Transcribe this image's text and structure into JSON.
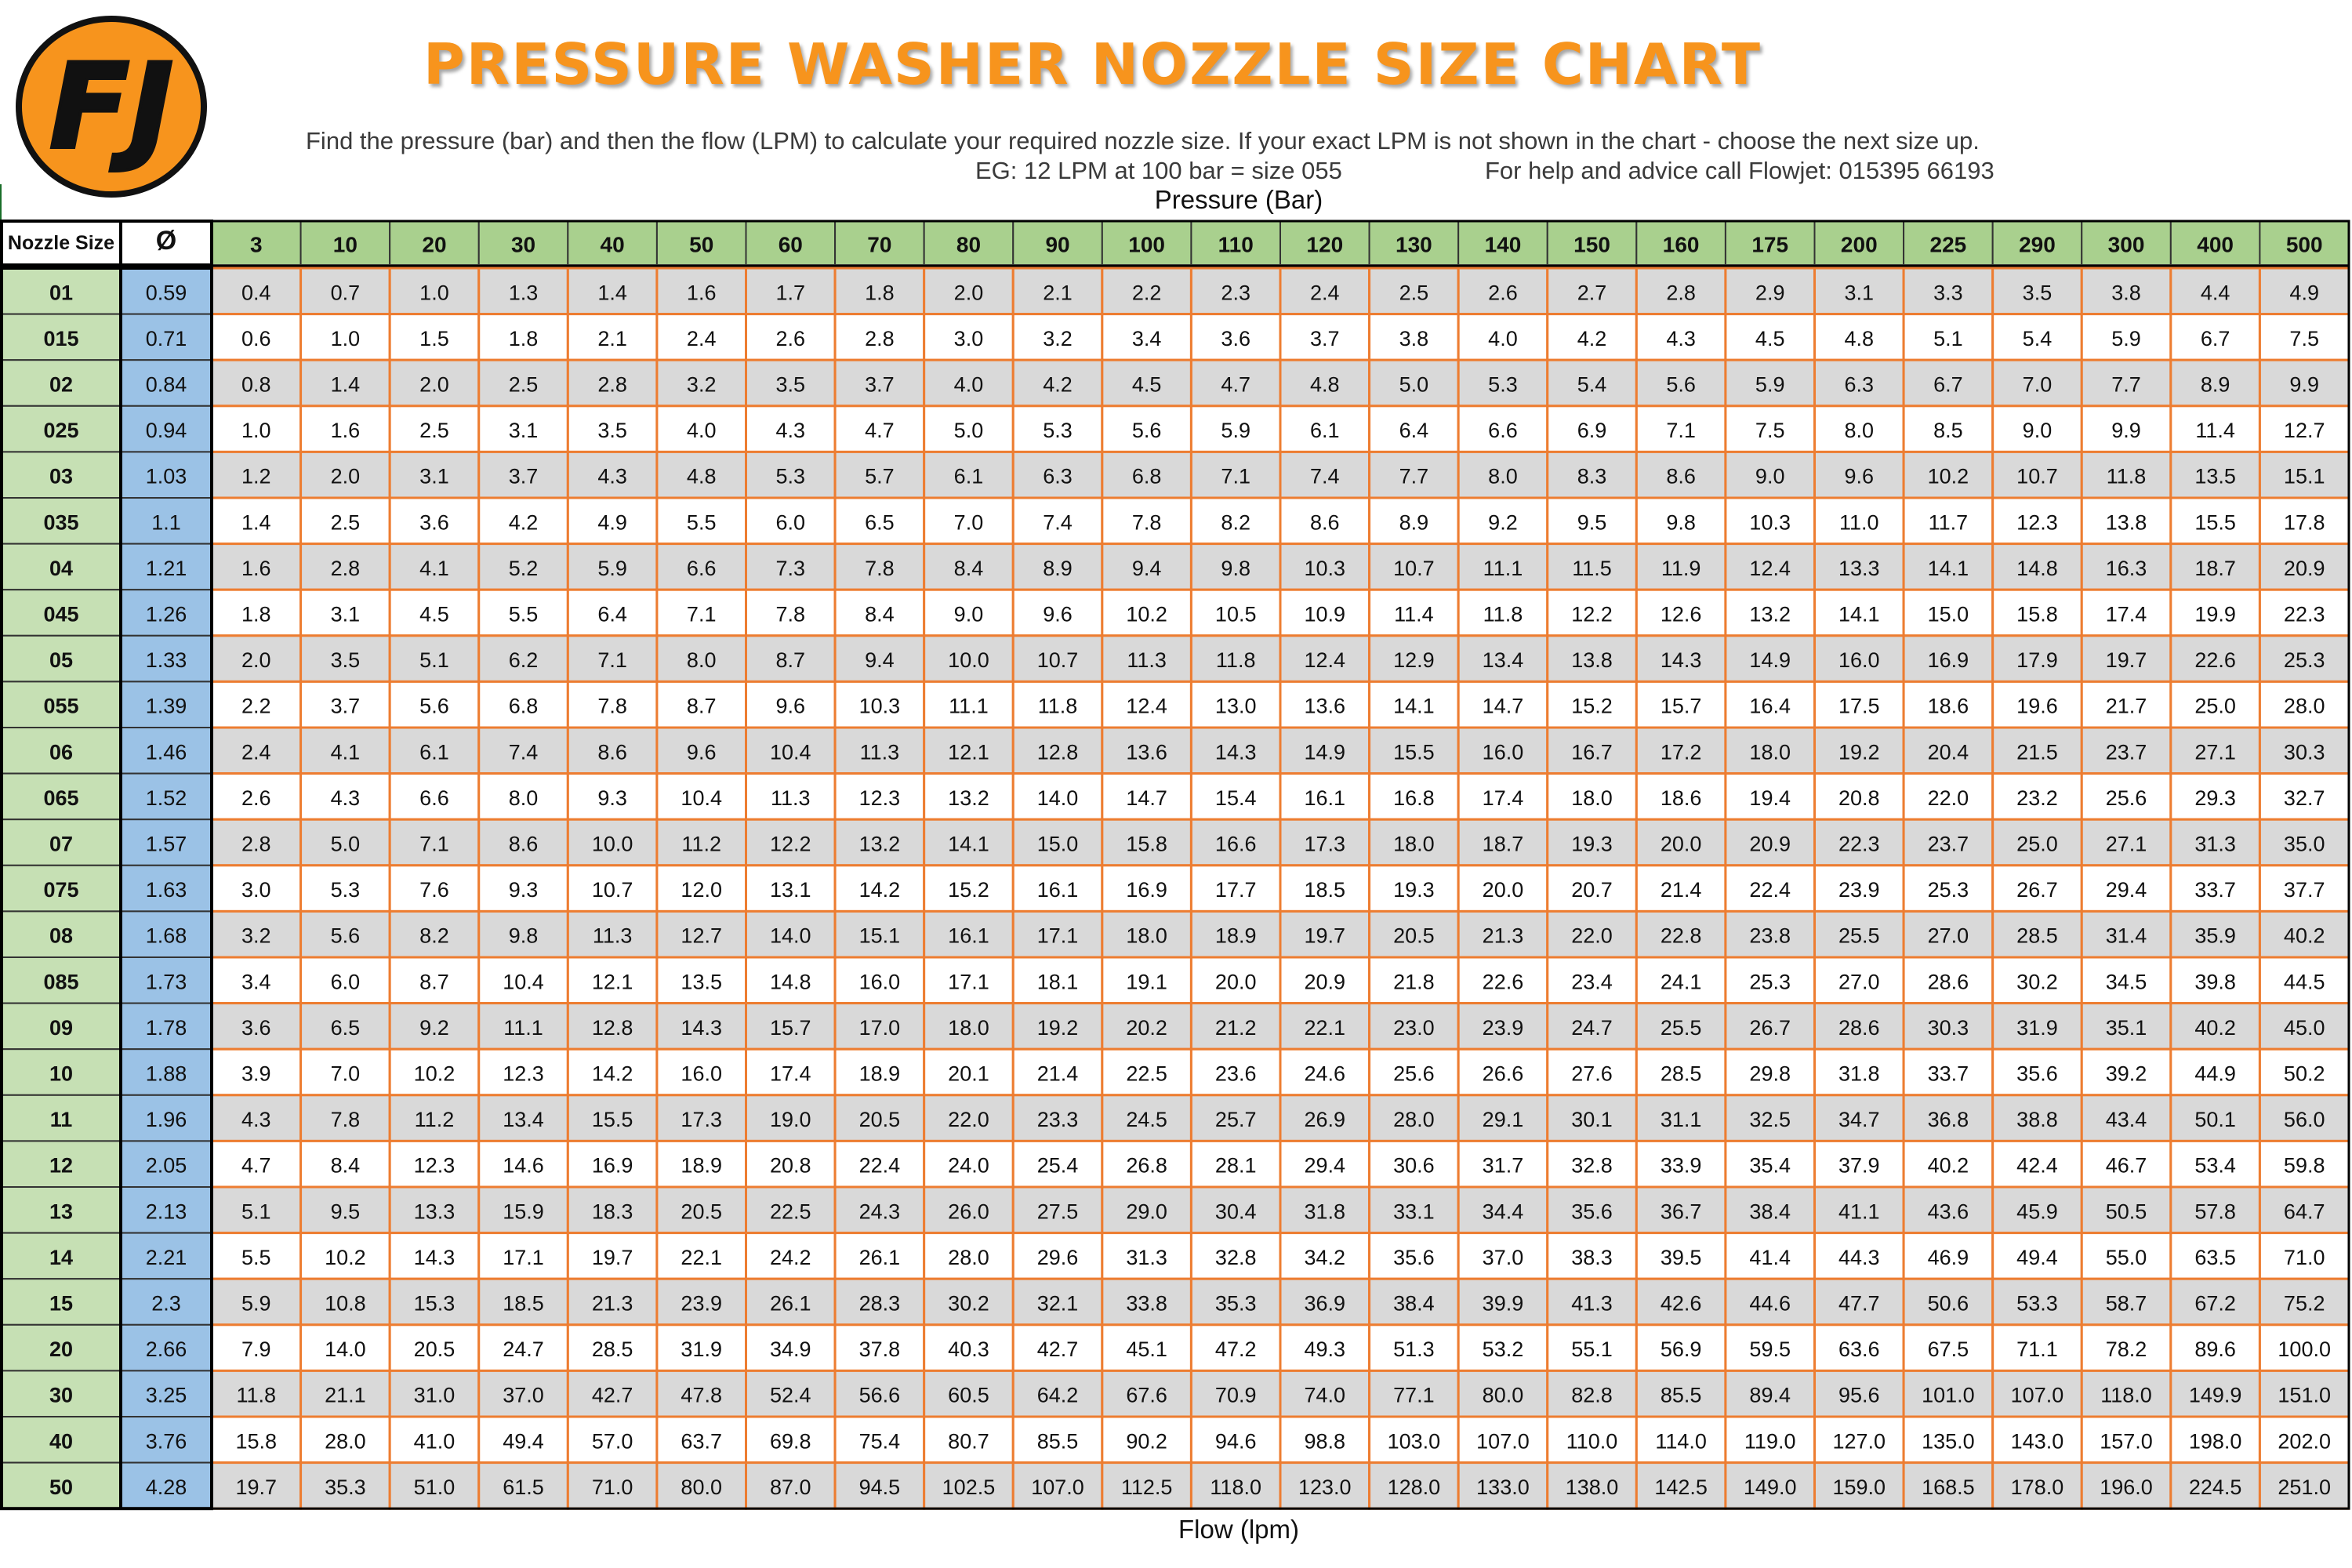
{
  "header": {
    "logo_text": "FJ",
    "title": "PRESSURE WASHER NOZZLE SIZE CHART",
    "instructions": "Find the pressure (bar) and then the flow (LPM) to calculate your required nozzle size. If your exact LPM is not shown in the chart - choose the next size up.",
    "example": "EG: 12 LPM at 100 bar = size 055",
    "help": "For help and advice call Flowjet: 015395 66193",
    "pressure_label": "Pressure (Bar)",
    "flow_label": "Flow (lpm)"
  },
  "colors": {
    "title_orange": "#F7941D",
    "logo_orange": "#F7941D",
    "grid_orange": "#ED7D31",
    "green_header": "#A9D08E",
    "nozzle_green": "#C6E0B4",
    "diameter_blue": "#9BC2E6",
    "row_gray": "#D9D9D9",
    "row_white": "#FFFFFF"
  },
  "chart_data": {
    "type": "table",
    "row_header_label": "Nozzle Size",
    "diameter_label": "Ø",
    "pressures": [
      "3",
      "10",
      "20",
      "30",
      "40",
      "50",
      "60",
      "70",
      "80",
      "90",
      "100",
      "110",
      "120",
      "130",
      "140",
      "150",
      "160",
      "175",
      "200",
      "225",
      "290",
      "300",
      "400",
      "500"
    ],
    "rows": [
      {
        "size": "01",
        "d": "0.59",
        "v": [
          "0.4",
          "0.7",
          "1.0",
          "1.3",
          "1.4",
          "1.6",
          "1.7",
          "1.8",
          "2.0",
          "2.1",
          "2.2",
          "2.3",
          "2.4",
          "2.5",
          "2.6",
          "2.7",
          "2.8",
          "2.9",
          "3.1",
          "3.3",
          "3.5",
          "3.8",
          "4.4",
          "4.9"
        ]
      },
      {
        "size": "015",
        "d": "0.71",
        "v": [
          "0.6",
          "1.0",
          "1.5",
          "1.8",
          "2.1",
          "2.4",
          "2.6",
          "2.8",
          "3.0",
          "3.2",
          "3.4",
          "3.6",
          "3.7",
          "3.8",
          "4.0",
          "4.2",
          "4.3",
          "4.5",
          "4.8",
          "5.1",
          "5.4",
          "5.9",
          "6.7",
          "7.5"
        ]
      },
      {
        "size": "02",
        "d": "0.84",
        "v": [
          "0.8",
          "1.4",
          "2.0",
          "2.5",
          "2.8",
          "3.2",
          "3.5",
          "3.7",
          "4.0",
          "4.2",
          "4.5",
          "4.7",
          "4.8",
          "5.0",
          "5.3",
          "5.4",
          "5.6",
          "5.9",
          "6.3",
          "6.7",
          "7.0",
          "7.7",
          "8.9",
          "9.9"
        ]
      },
      {
        "size": "025",
        "d": "0.94",
        "v": [
          "1.0",
          "1.6",
          "2.5",
          "3.1",
          "3.5",
          "4.0",
          "4.3",
          "4.7",
          "5.0",
          "5.3",
          "5.6",
          "5.9",
          "6.1",
          "6.4",
          "6.6",
          "6.9",
          "7.1",
          "7.5",
          "8.0",
          "8.5",
          "9.0",
          "9.9",
          "11.4",
          "12.7"
        ]
      },
      {
        "size": "03",
        "d": "1.03",
        "v": [
          "1.2",
          "2.0",
          "3.1",
          "3.7",
          "4.3",
          "4.8",
          "5.3",
          "5.7",
          "6.1",
          "6.3",
          "6.8",
          "7.1",
          "7.4",
          "7.7",
          "8.0",
          "8.3",
          "8.6",
          "9.0",
          "9.6",
          "10.2",
          "10.7",
          "11.8",
          "13.5",
          "15.1"
        ]
      },
      {
        "size": "035",
        "d": "1.1",
        "v": [
          "1.4",
          "2.5",
          "3.6",
          "4.2",
          "4.9",
          "5.5",
          "6.0",
          "6.5",
          "7.0",
          "7.4",
          "7.8",
          "8.2",
          "8.6",
          "8.9",
          "9.2",
          "9.5",
          "9.8",
          "10.3",
          "11.0",
          "11.7",
          "12.3",
          "13.8",
          "15.5",
          "17.8"
        ]
      },
      {
        "size": "04",
        "d": "1.21",
        "v": [
          "1.6",
          "2.8",
          "4.1",
          "5.2",
          "5.9",
          "6.6",
          "7.3",
          "7.8",
          "8.4",
          "8.9",
          "9.4",
          "9.8",
          "10.3",
          "10.7",
          "11.1",
          "11.5",
          "11.9",
          "12.4",
          "13.3",
          "14.1",
          "14.8",
          "16.3",
          "18.7",
          "20.9"
        ]
      },
      {
        "size": "045",
        "d": "1.26",
        "v": [
          "1.8",
          "3.1",
          "4.5",
          "5.5",
          "6.4",
          "7.1",
          "7.8",
          "8.4",
          "9.0",
          "9.6",
          "10.2",
          "10.5",
          "10.9",
          "11.4",
          "11.8",
          "12.2",
          "12.6",
          "13.2",
          "14.1",
          "15.0",
          "15.8",
          "17.4",
          "19.9",
          "22.3"
        ]
      },
      {
        "size": "05",
        "d": "1.33",
        "v": [
          "2.0",
          "3.5",
          "5.1",
          "6.2",
          "7.1",
          "8.0",
          "8.7",
          "9.4",
          "10.0",
          "10.7",
          "11.3",
          "11.8",
          "12.4",
          "12.9",
          "13.4",
          "13.8",
          "14.3",
          "14.9",
          "16.0",
          "16.9",
          "17.9",
          "19.7",
          "22.6",
          "25.3"
        ]
      },
      {
        "size": "055",
        "d": "1.39",
        "v": [
          "2.2",
          "3.7",
          "5.6",
          "6.8",
          "7.8",
          "8.7",
          "9.6",
          "10.3",
          "11.1",
          "11.8",
          "12.4",
          "13.0",
          "13.6",
          "14.1",
          "14.7",
          "15.2",
          "15.7",
          "16.4",
          "17.5",
          "18.6",
          "19.6",
          "21.7",
          "25.0",
          "28.0"
        ]
      },
      {
        "size": "06",
        "d": "1.46",
        "v": [
          "2.4",
          "4.1",
          "6.1",
          "7.4",
          "8.6",
          "9.6",
          "10.4",
          "11.3",
          "12.1",
          "12.8",
          "13.6",
          "14.3",
          "14.9",
          "15.5",
          "16.0",
          "16.7",
          "17.2",
          "18.0",
          "19.2",
          "20.4",
          "21.5",
          "23.7",
          "27.1",
          "30.3"
        ]
      },
      {
        "size": "065",
        "d": "1.52",
        "v": [
          "2.6",
          "4.3",
          "6.6",
          "8.0",
          "9.3",
          "10.4",
          "11.3",
          "12.3",
          "13.2",
          "14.0",
          "14.7",
          "15.4",
          "16.1",
          "16.8",
          "17.4",
          "18.0",
          "18.6",
          "19.4",
          "20.8",
          "22.0",
          "23.2",
          "25.6",
          "29.3",
          "32.7"
        ]
      },
      {
        "size": "07",
        "d": "1.57",
        "v": [
          "2.8",
          "5.0",
          "7.1",
          "8.6",
          "10.0",
          "11.2",
          "12.2",
          "13.2",
          "14.1",
          "15.0",
          "15.8",
          "16.6",
          "17.3",
          "18.0",
          "18.7",
          "19.3",
          "20.0",
          "20.9",
          "22.3",
          "23.7",
          "25.0",
          "27.1",
          "31.3",
          "35.0"
        ]
      },
      {
        "size": "075",
        "d": "1.63",
        "v": [
          "3.0",
          "5.3",
          "7.6",
          "9.3",
          "10.7",
          "12.0",
          "13.1",
          "14.2",
          "15.2",
          "16.1",
          "16.9",
          "17.7",
          "18.5",
          "19.3",
          "20.0",
          "20.7",
          "21.4",
          "22.4",
          "23.9",
          "25.3",
          "26.7",
          "29.4",
          "33.7",
          "37.7"
        ]
      },
      {
        "size": "08",
        "d": "1.68",
        "v": [
          "3.2",
          "5.6",
          "8.2",
          "9.8",
          "11.3",
          "12.7",
          "14.0",
          "15.1",
          "16.1",
          "17.1",
          "18.0",
          "18.9",
          "19.7",
          "20.5",
          "21.3",
          "22.0",
          "22.8",
          "23.8",
          "25.5",
          "27.0",
          "28.5",
          "31.4",
          "35.9",
          "40.2"
        ]
      },
      {
        "size": "085",
        "d": "1.73",
        "v": [
          "3.4",
          "6.0",
          "8.7",
          "10.4",
          "12.1",
          "13.5",
          "14.8",
          "16.0",
          "17.1",
          "18.1",
          "19.1",
          "20.0",
          "20.9",
          "21.8",
          "22.6",
          "23.4",
          "24.1",
          "25.3",
          "27.0",
          "28.6",
          "30.2",
          "34.5",
          "39.8",
          "44.5"
        ]
      },
      {
        "size": "09",
        "d": "1.78",
        "v": [
          "3.6",
          "6.5",
          "9.2",
          "11.1",
          "12.8",
          "14.3",
          "15.7",
          "17.0",
          "18.0",
          "19.2",
          "20.2",
          "21.2",
          "22.1",
          "23.0",
          "23.9",
          "24.7",
          "25.5",
          "26.7",
          "28.6",
          "30.3",
          "31.9",
          "35.1",
          "40.2",
          "45.0"
        ]
      },
      {
        "size": "10",
        "d": "1.88",
        "v": [
          "3.9",
          "7.0",
          "10.2",
          "12.3",
          "14.2",
          "16.0",
          "17.4",
          "18.9",
          "20.1",
          "21.4",
          "22.5",
          "23.6",
          "24.6",
          "25.6",
          "26.6",
          "27.6",
          "28.5",
          "29.8",
          "31.8",
          "33.7",
          "35.6",
          "39.2",
          "44.9",
          "50.2"
        ]
      },
      {
        "size": "11",
        "d": "1.96",
        "v": [
          "4.3",
          "7.8",
          "11.2",
          "13.4",
          "15.5",
          "17.3",
          "19.0",
          "20.5",
          "22.0",
          "23.3",
          "24.5",
          "25.7",
          "26.9",
          "28.0",
          "29.1",
          "30.1",
          "31.1",
          "32.5",
          "34.7",
          "36.8",
          "38.8",
          "43.4",
          "50.1",
          "56.0"
        ]
      },
      {
        "size": "12",
        "d": "2.05",
        "v": [
          "4.7",
          "8.4",
          "12.3",
          "14.6",
          "16.9",
          "18.9",
          "20.8",
          "22.4",
          "24.0",
          "25.4",
          "26.8",
          "28.1",
          "29.4",
          "30.6",
          "31.7",
          "32.8",
          "33.9",
          "35.4",
          "37.9",
          "40.2",
          "42.4",
          "46.7",
          "53.4",
          "59.8"
        ]
      },
      {
        "size": "13",
        "d": "2.13",
        "v": [
          "5.1",
          "9.5",
          "13.3",
          "15.9",
          "18.3",
          "20.5",
          "22.5",
          "24.3",
          "26.0",
          "27.5",
          "29.0",
          "30.4",
          "31.8",
          "33.1",
          "34.4",
          "35.6",
          "36.7",
          "38.4",
          "41.1",
          "43.6",
          "45.9",
          "50.5",
          "57.8",
          "64.7"
        ]
      },
      {
        "size": "14",
        "d": "2.21",
        "v": [
          "5.5",
          "10.2",
          "14.3",
          "17.1",
          "19.7",
          "22.1",
          "24.2",
          "26.1",
          "28.0",
          "29.6",
          "31.3",
          "32.8",
          "34.2",
          "35.6",
          "37.0",
          "38.3",
          "39.5",
          "41.4",
          "44.3",
          "46.9",
          "49.4",
          "55.0",
          "63.5",
          "71.0"
        ]
      },
      {
        "size": "15",
        "d": "2.3",
        "v": [
          "5.9",
          "10.8",
          "15.3",
          "18.5",
          "21.3",
          "23.9",
          "26.1",
          "28.3",
          "30.2",
          "32.1",
          "33.8",
          "35.3",
          "36.9",
          "38.4",
          "39.9",
          "41.3",
          "42.6",
          "44.6",
          "47.7",
          "50.6",
          "53.3",
          "58.7",
          "67.2",
          "75.2"
        ]
      },
      {
        "size": "20",
        "d": "2.66",
        "v": [
          "7.9",
          "14.0",
          "20.5",
          "24.7",
          "28.5",
          "31.9",
          "34.9",
          "37.8",
          "40.3",
          "42.7",
          "45.1",
          "47.2",
          "49.3",
          "51.3",
          "53.2",
          "55.1",
          "56.9",
          "59.5",
          "63.6",
          "67.5",
          "71.1",
          "78.2",
          "89.6",
          "100.0"
        ]
      },
      {
        "size": "30",
        "d": "3.25",
        "v": [
          "11.8",
          "21.1",
          "31.0",
          "37.0",
          "42.7",
          "47.8",
          "52.4",
          "56.6",
          "60.5",
          "64.2",
          "67.6",
          "70.9",
          "74.0",
          "77.1",
          "80.0",
          "82.8",
          "85.5",
          "89.4",
          "95.6",
          "101.0",
          "107.0",
          "118.0",
          "149.9",
          "151.0"
        ]
      },
      {
        "size": "40",
        "d": "3.76",
        "v": [
          "15.8",
          "28.0",
          "41.0",
          "49.4",
          "57.0",
          "63.7",
          "69.8",
          "75.4",
          "80.7",
          "85.5",
          "90.2",
          "94.6",
          "98.8",
          "103.0",
          "107.0",
          "110.0",
          "114.0",
          "119.0",
          "127.0",
          "135.0",
          "143.0",
          "157.0",
          "198.0",
          "202.0"
        ]
      },
      {
        "size": "50",
        "d": "4.28",
        "v": [
          "19.7",
          "35.3",
          "51.0",
          "61.5",
          "71.0",
          "80.0",
          "87.0",
          "94.5",
          "102.5",
          "107.0",
          "112.5",
          "118.0",
          "123.0",
          "128.0",
          "133.0",
          "138.0",
          "142.5",
          "149.0",
          "159.0",
          "168.5",
          "178.0",
          "196.0",
          "224.5",
          "251.0"
        ]
      }
    ]
  }
}
